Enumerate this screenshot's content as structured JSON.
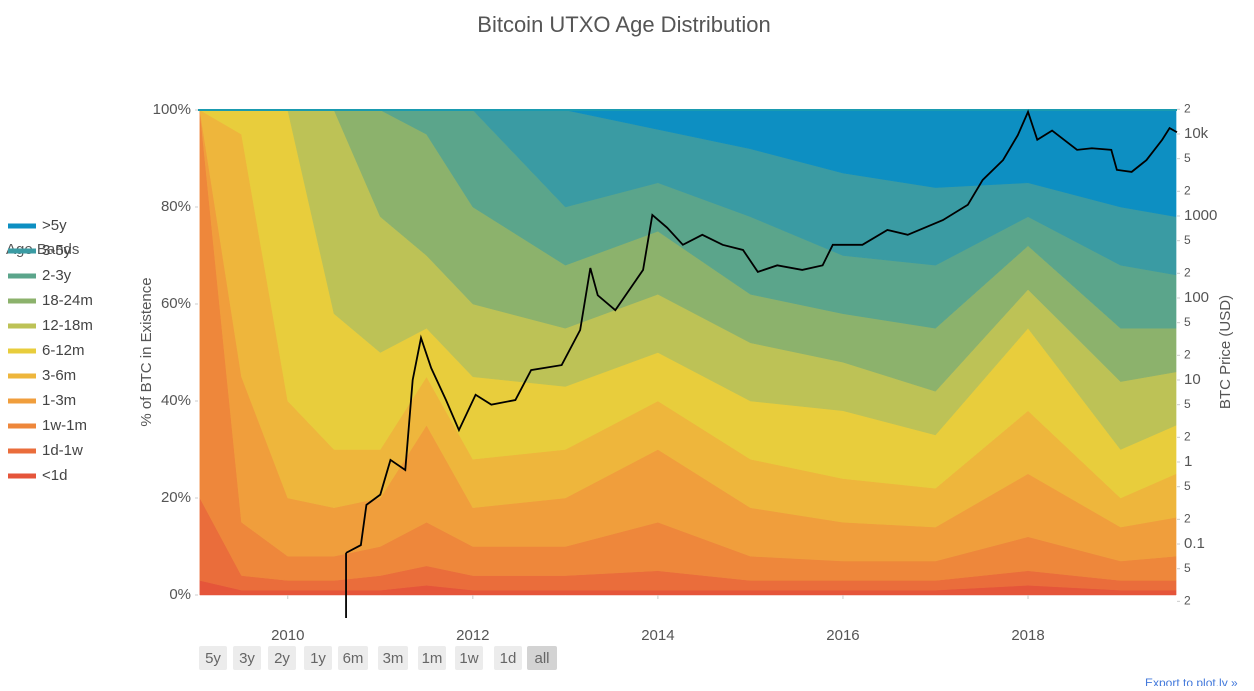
{
  "chart_data": {
    "type": "stacked-area",
    "title": "Bitcoin UTXO Age Distribution",
    "y_label": "% of BTC in Existence",
    "y2_label": "BTC Price (USD)",
    "legend_title": "Age Bands",
    "legend": "left",
    "grid": false,
    "x": [
      2009.05,
      2009.5,
      2010,
      2010.5,
      2011,
      2011.5,
      2012,
      2013,
      2014,
      2015,
      2016,
      2017,
      2018,
      2019,
      2019.6
    ],
    "xlim": [
      2009.03,
      2019.61
    ],
    "xticks": [
      2010,
      2012,
      2014,
      2016,
      2018
    ],
    "ylim": [
      0,
      100
    ],
    "yticks": [
      {
        "value": 0,
        "label": "0%"
      },
      {
        "value": 20,
        "label": "20%"
      },
      {
        "value": 40,
        "label": "40%"
      },
      {
        "value": 60,
        "label": "60%"
      },
      {
        "value": 80,
        "label": "80%"
      },
      {
        "value": 100,
        "label": "100%"
      }
    ],
    "y2lim": [
      0.0239,
      19600
    ],
    "y2log": true,
    "y2ticks": [
      {
        "value": 0.02,
        "label": "2"
      },
      {
        "value": 0.05,
        "label": "5"
      },
      0.1,
      {
        "value": 0.2,
        "label": "2"
      },
      {
        "value": 0.5,
        "label": "5"
      },
      1,
      2,
      5,
      10,
      {
        "value": 20,
        "label": "2"
      },
      {
        "value": 50,
        "label": "5"
      },
      100,
      {
        "value": 200,
        "label": "2"
      },
      {
        "value": 500,
        "label": "5"
      },
      1000,
      {
        "value": 2000,
        "label": "2"
      },
      {
        "value": 5000,
        "label": "5"
      },
      {
        "value": 10000,
        "label": "10k"
      },
      {
        "value": 20000,
        "label": "2"
      }
    ],
    "series": [
      {
        "name": "<1d",
        "color": "#e5553a",
        "values": [
          3,
          1,
          1,
          1,
          1,
          2,
          1,
          1,
          1,
          1,
          1,
          1,
          2,
          1,
          1
        ]
      },
      {
        "name": "1d-1w",
        "color": "#ea6d3b",
        "values": [
          17,
          3,
          2,
          2,
          3,
          4,
          3,
          3,
          4,
          2,
          2,
          2,
          3,
          2,
          2
        ]
      },
      {
        "name": "1w-1m",
        "color": "#ee873b",
        "values": [
          80,
          11,
          5,
          5,
          6,
          9,
          6,
          6,
          10,
          5,
          4,
          4,
          7,
          4,
          5
        ]
      },
      {
        "name": "1-3m",
        "color": "#f09e3c",
        "values": [
          0,
          30,
          12,
          10,
          10,
          20,
          8,
          10,
          15,
          10,
          8,
          7,
          13,
          7,
          8
        ]
      },
      {
        "name": "3-6m",
        "color": "#eeb63c",
        "values": [
          0,
          50,
          20,
          12,
          10,
          10,
          10,
          10,
          10,
          10,
          9,
          8,
          13,
          6,
          9
        ]
      },
      {
        "name": "6-12m",
        "color": "#e8cd3c",
        "values": [
          0,
          5,
          60,
          28,
          20,
          10,
          17,
          13,
          10,
          12,
          14,
          11,
          17,
          10,
          10
        ]
      },
      {
        "name": "12-18m",
        "color": "#bdc256",
        "values": [
          0,
          0,
          0,
          42,
          28,
          15,
          15,
          12,
          12,
          12,
          10,
          9,
          8,
          14,
          11
        ]
      },
      {
        "name": "18-24m",
        "color": "#8cb26c",
        "values": [
          0,
          0,
          0,
          0,
          22,
          25,
          20,
          13,
          13,
          10,
          10,
          13,
          9,
          11,
          9
        ]
      },
      {
        "name": "2-3y",
        "color": "#5ba58b",
        "values": [
          0,
          0,
          0,
          0,
          0,
          5,
          20,
          12,
          10,
          16,
          12,
          13,
          6,
          13,
          11
        ]
      },
      {
        "name": "3-5y",
        "color": "#3a9ba3",
        "values": [
          0,
          0,
          0,
          0,
          0,
          0,
          0,
          20,
          11,
          14,
          17,
          16,
          7,
          12,
          12
        ]
      },
      {
        "name": ">5y",
        "color": "#0d8fc2",
        "values": [
          0,
          0,
          0,
          0,
          0,
          0,
          0,
          0,
          4,
          8,
          13,
          16,
          15,
          20,
          22
        ]
      }
    ],
    "price": {
      "color": "#000000",
      "axis": "y2",
      "x": [
        2010.63,
        2010.79,
        2010.85,
        2011.0,
        2011.11,
        2011.27,
        2011.35,
        2011.44,
        2011.55,
        2011.71,
        2011.85,
        2012.03,
        2012.2,
        2012.46,
        2012.63,
        2012.96,
        2013.16,
        2013.27,
        2013.35,
        2013.54,
        2013.84,
        2013.94,
        2014.1,
        2014.27,
        2014.48,
        2014.7,
        2014.92,
        2015.08,
        2015.29,
        2015.56,
        2015.78,
        2015.89,
        2016.21,
        2016.48,
        2016.7,
        2017.08,
        2017.35,
        2017.51,
        2017.73,
        2017.89,
        2018.0,
        2018.1,
        2018.26,
        2018.53,
        2018.69,
        2018.9,
        2018.96,
        2019.12,
        2019.28,
        2019.45,
        2019.53,
        2019.61
      ],
      "values": [
        0.078,
        0.097,
        0.3,
        0.4,
        1.06,
        0.8,
        10,
        32.6,
        14,
        5.7,
        2.45,
        6.6,
        5.0,
        5.7,
        13.2,
        15.2,
        40.7,
        232,
        108,
        71,
        220,
        1030,
        720,
        445,
        590,
        445,
        385,
        208,
        250,
        220,
        250,
        445,
        445,
        675,
        590,
        890,
        1370,
        2750,
        4800,
        9700,
        18600,
        8500,
        11000,
        6400,
        6700,
        6400,
        3650,
        3450,
        4800,
        8500,
        11800,
        10500
      ]
    },
    "range_buttons": [
      "5y",
      "3y",
      "2y",
      "1y",
      "6m",
      "3m",
      "1m",
      "1w",
      "1d",
      "all"
    ],
    "active_button": "all",
    "export_link": "Export to plot.ly »"
  }
}
